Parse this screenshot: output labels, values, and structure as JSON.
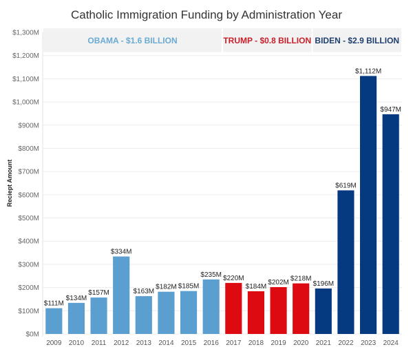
{
  "chart_data": {
    "type": "bar",
    "title": "Catholic Immigration Funding by Administration Year",
    "xlabel": "",
    "ylabel": "Reciept Amount",
    "ylim": [
      0,
      1300
    ],
    "yunit": "$M",
    "yticks": [
      0,
      100,
      200,
      300,
      400,
      500,
      600,
      700,
      800,
      900,
      1000,
      1100,
      1200,
      1300
    ],
    "ytick_labels": [
      "$0M",
      "$100M",
      "$200M",
      "$300M",
      "$400M",
      "$500M",
      "$600M",
      "$700M",
      "$800M",
      "$900M",
      "$1,000M",
      "$1,100M",
      "$1,200M",
      "$1,300M"
    ],
    "grid": true,
    "categories": [
      "2009",
      "2010",
      "2011",
      "2012",
      "2013",
      "2014",
      "2015",
      "2016",
      "2017",
      "2018",
      "2019",
      "2020",
      "2021",
      "2022",
      "2023",
      "2024"
    ],
    "values": [
      111,
      134,
      157,
      334,
      163,
      182,
      185,
      235,
      220,
      184,
      202,
      218,
      196,
      619,
      1112,
      947
    ],
    "data_labels": [
      "$111M",
      "$134M",
      "$157M",
      "$334M",
      "$163M",
      "$182M",
      "$185M",
      "$235M",
      "$220M",
      "$184M",
      "$202M",
      "$218M",
      "$196M",
      "$619M",
      "$1,112M",
      "$947M"
    ],
    "administration": [
      "obama",
      "obama",
      "obama",
      "obama",
      "obama",
      "obama",
      "obama",
      "obama",
      "trump",
      "trump",
      "trump",
      "trump",
      "biden",
      "biden",
      "biden",
      "biden"
    ],
    "bands": [
      {
        "key": "obama",
        "label": "OBAMA - $1.6 BILLION",
        "color": "#6aaad3",
        "start": 0,
        "end": 7
      },
      {
        "key": "trump",
        "label": "TRUMP - $0.8 BILLION",
        "color": "#c8202a",
        "start": 8,
        "end": 11
      },
      {
        "key": "biden",
        "label": "BIDEN - $2.9 BILLION",
        "color": "#1f3f6e",
        "start": 12,
        "end": 15
      }
    ],
    "colors": {
      "obama": "#5b9fd0",
      "trump": "#dd0a12",
      "biden": "#053a80"
    }
  }
}
